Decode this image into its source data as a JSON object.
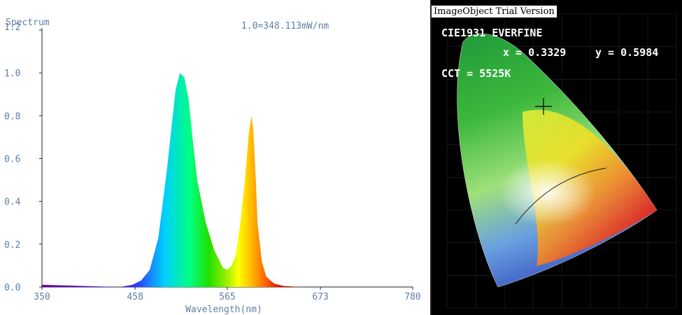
{
  "chart_data": [
    {
      "type": "area",
      "title": "Spectrum",
      "annotation": "1.0=348.113mW/nm",
      "xlabel": "Wavelength(nm)",
      "ylabel": "",
      "xlim": [
        350,
        780
      ],
      "ylim": [
        0,
        1.2
      ],
      "xticks": [
        "350",
        "458",
        "565",
        "673",
        "780"
      ],
      "yticks": [
        "0.0",
        "0.2",
        "0.4",
        "0.6",
        "0.8",
        "1.0",
        "1.2"
      ],
      "grid": false,
      "x": [
        350,
        440,
        455,
        465,
        475,
        485,
        495,
        505,
        510,
        515,
        520,
        525,
        530,
        540,
        550,
        555,
        560,
        565,
        570,
        575,
        580,
        585,
        590,
        593,
        595,
        598,
        600,
        605,
        610,
        615,
        620,
        630,
        650,
        700,
        780
      ],
      "y": [
        0.01,
        0.0,
        0.01,
        0.03,
        0.08,
        0.23,
        0.55,
        0.92,
        1.0,
        0.98,
        0.88,
        0.68,
        0.5,
        0.3,
        0.17,
        0.13,
        0.09,
        0.08,
        0.1,
        0.15,
        0.3,
        0.48,
        0.72,
        0.8,
        0.74,
        0.5,
        0.3,
        0.12,
        0.05,
        0.03,
        0.015,
        0.005,
        0.0,
        0.0,
        0.0
      ]
    },
    {
      "type": "scatter",
      "title": "CIE1931 EVERFINE",
      "header": "ImageObject Trial Version",
      "x_text": "x = 0.3329",
      "y_text": "y = 0.5984",
      "cct_text": "CCT = 5525K",
      "xlim": [
        0,
        0.8
      ],
      "ylim": [
        0,
        0.9
      ],
      "points": [
        {
          "x": 0.3329,
          "y": 0.5984
        }
      ]
    }
  ]
}
